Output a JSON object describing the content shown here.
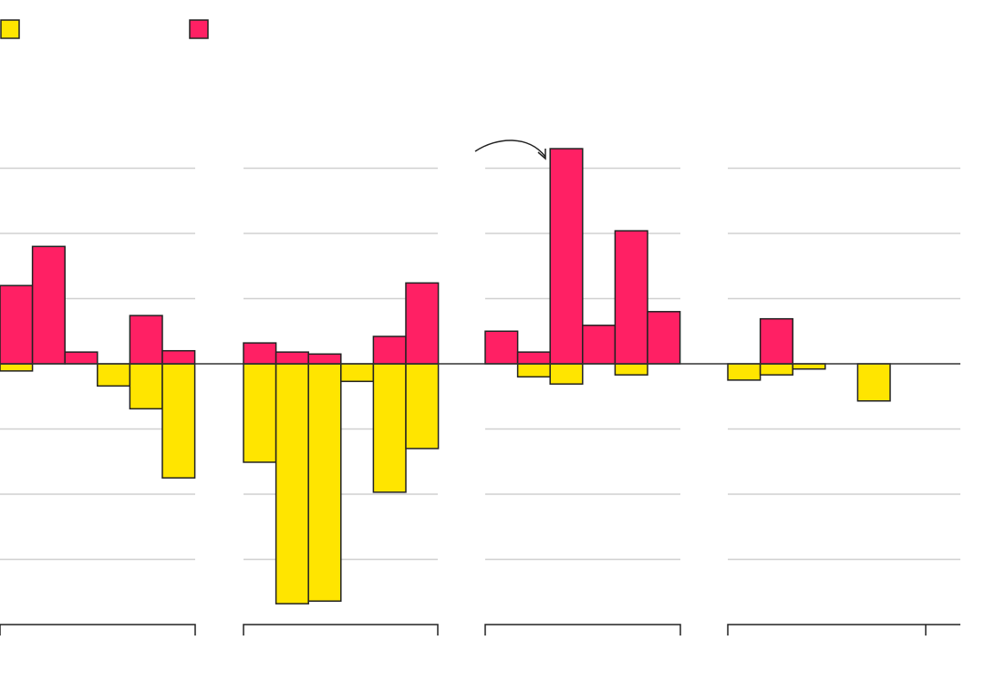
{
  "chart_data": [
    {
      "type": "bar",
      "categories": [
        null,
        null,
        null,
        null,
        null,
        null
      ],
      "series": [
        {
          "color": "#ffe500",
          "values": [
            -0.11,
            null,
            null,
            -0.34,
            -0.69,
            -1.75
          ]
        },
        {
          "color": "#ff2064",
          "values": [
            1.2,
            1.8,
            0.18,
            null,
            0.74,
            0.2
          ]
        }
      ],
      "ylim": [
        -4,
        3.5
      ],
      "yticks": [
        -3,
        -2,
        -1,
        1,
        2,
        3
      ],
      "grid": true
    },
    {
      "type": "bar",
      "categories": [
        null,
        null,
        null,
        null,
        null,
        null
      ],
      "series": [
        {
          "color": "#ffe500",
          "values": [
            -1.51,
            -3.68,
            -3.64,
            -0.27,
            -1.97,
            -1.3
          ]
        },
        {
          "color": "#ff2064",
          "values": [
            0.32,
            0.18,
            0.15,
            null,
            0.42,
            1.24
          ]
        }
      ],
      "ylim": [
        -4,
        3.5
      ],
      "yticks": [
        -3,
        -2,
        -1,
        1,
        2,
        3
      ],
      "grid": true
    },
    {
      "type": "bar",
      "categories": [
        null,
        null,
        null,
        null,
        null,
        null
      ],
      "series": [
        {
          "color": "#ffe500",
          "values": [
            null,
            -0.2,
            -0.31,
            null,
            -0.17,
            null
          ]
        },
        {
          "color": "#ff2064",
          "values": [
            0.5,
            0.18,
            3.3,
            0.59,
            2.04,
            0.8
          ]
        }
      ],
      "ylim": [
        -4,
        3.5
      ],
      "yticks": [
        -3,
        -2,
        -1,
        1,
        2,
        3
      ],
      "grid": true
    },
    {
      "type": "bar",
      "categories": [
        null,
        null,
        null,
        null,
        null,
        null,
        null
      ],
      "series": [
        {
          "color": "#ffe500",
          "values": [
            -0.25,
            -0.17,
            -0.08,
            null,
            -0.57,
            null,
            null
          ]
        },
        {
          "color": "#ff2064",
          "values": [
            null,
            0.69,
            null,
            null,
            null,
            null,
            null
          ]
        }
      ],
      "ylim": [
        -4,
        3.5
      ],
      "yticks": [
        -3,
        -2,
        -1,
        1,
        2,
        3
      ],
      "grid": true
    }
  ]
}
